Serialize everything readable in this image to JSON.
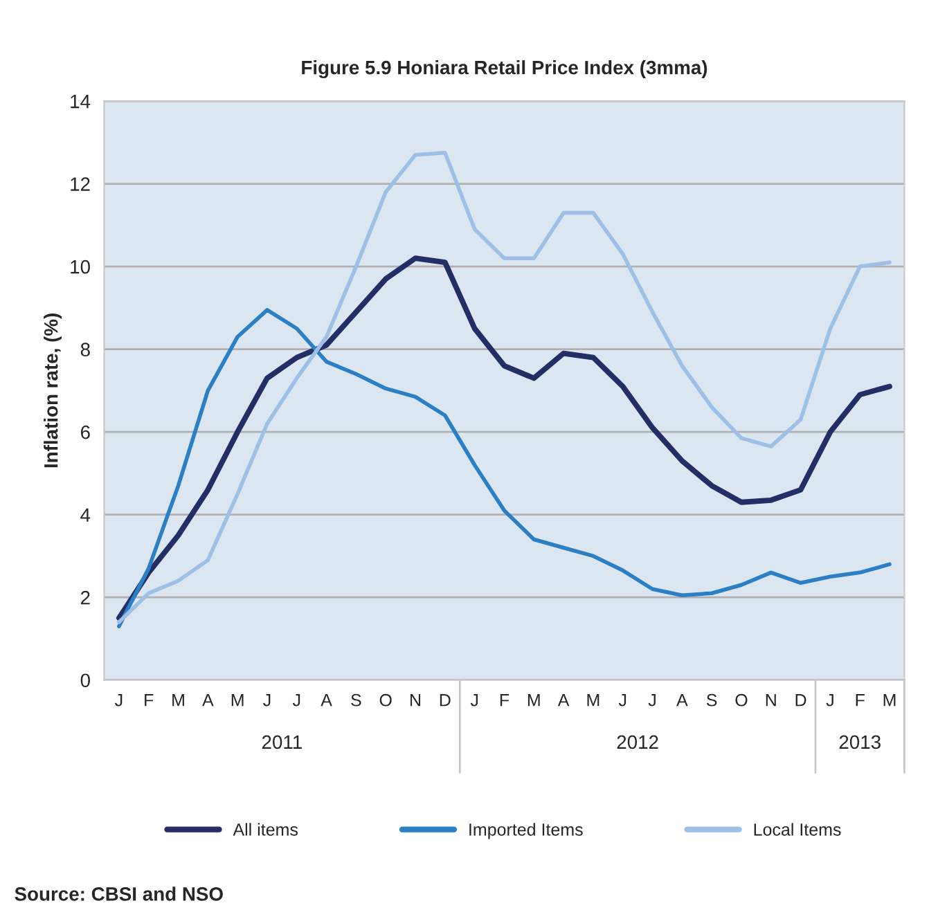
{
  "chart_data": {
    "type": "line",
    "title": "Figure 5.9 Honiara Retail Price Index (3mma)",
    "ylabel": "Inflation rate, (%)",
    "categories": [
      "J",
      "F",
      "M",
      "A",
      "M",
      "J",
      "J",
      "A",
      "S",
      "O",
      "N",
      "D",
      "J",
      "F",
      "M",
      "A",
      "M",
      "J",
      "J",
      "A",
      "S",
      "O",
      "N",
      "D",
      "J",
      "F",
      "M"
    ],
    "series": [
      {
        "name": "All items",
        "color": "#232d66",
        "values": [
          1.5,
          2.6,
          3.5,
          4.6,
          6.0,
          7.3,
          7.8,
          8.1,
          8.9,
          9.7,
          10.2,
          10.1,
          8.5,
          7.6,
          7.3,
          7.9,
          7.8,
          7.1,
          6.1,
          5.3,
          4.7,
          4.3,
          4.35,
          4.6,
          6.0,
          6.9,
          7.1
        ]
      },
      {
        "name": "Imported Items",
        "color": "#2b7fc4",
        "values": [
          1.3,
          2.7,
          4.7,
          7.0,
          8.3,
          8.95,
          8.5,
          7.7,
          7.4,
          7.05,
          6.85,
          6.4,
          5.2,
          4.1,
          3.4,
          3.2,
          3.0,
          2.65,
          2.2,
          2.05,
          2.1,
          2.3,
          2.6,
          2.35,
          2.5,
          2.6,
          2.8
        ]
      },
      {
        "name": "Local Items",
        "color": "#9cc0e6",
        "values": [
          1.4,
          2.1,
          2.4,
          2.9,
          4.5,
          6.2,
          7.3,
          8.3,
          10.0,
          11.8,
          12.7,
          12.75,
          10.9,
          10.2,
          10.2,
          11.3,
          11.3,
          10.3,
          8.9,
          7.6,
          6.6,
          5.85,
          5.65,
          6.3,
          8.5,
          10.0,
          10.1
        ]
      }
    ],
    "ylim": [
      0,
      14
    ],
    "yticks": [
      0,
      2,
      4,
      6,
      8,
      10,
      12,
      14
    ],
    "grid": "y",
    "legend": "bottom",
    "annotations": [
      "2011",
      "2012",
      "2013",
      "Source: CBSI and NSO"
    ]
  }
}
